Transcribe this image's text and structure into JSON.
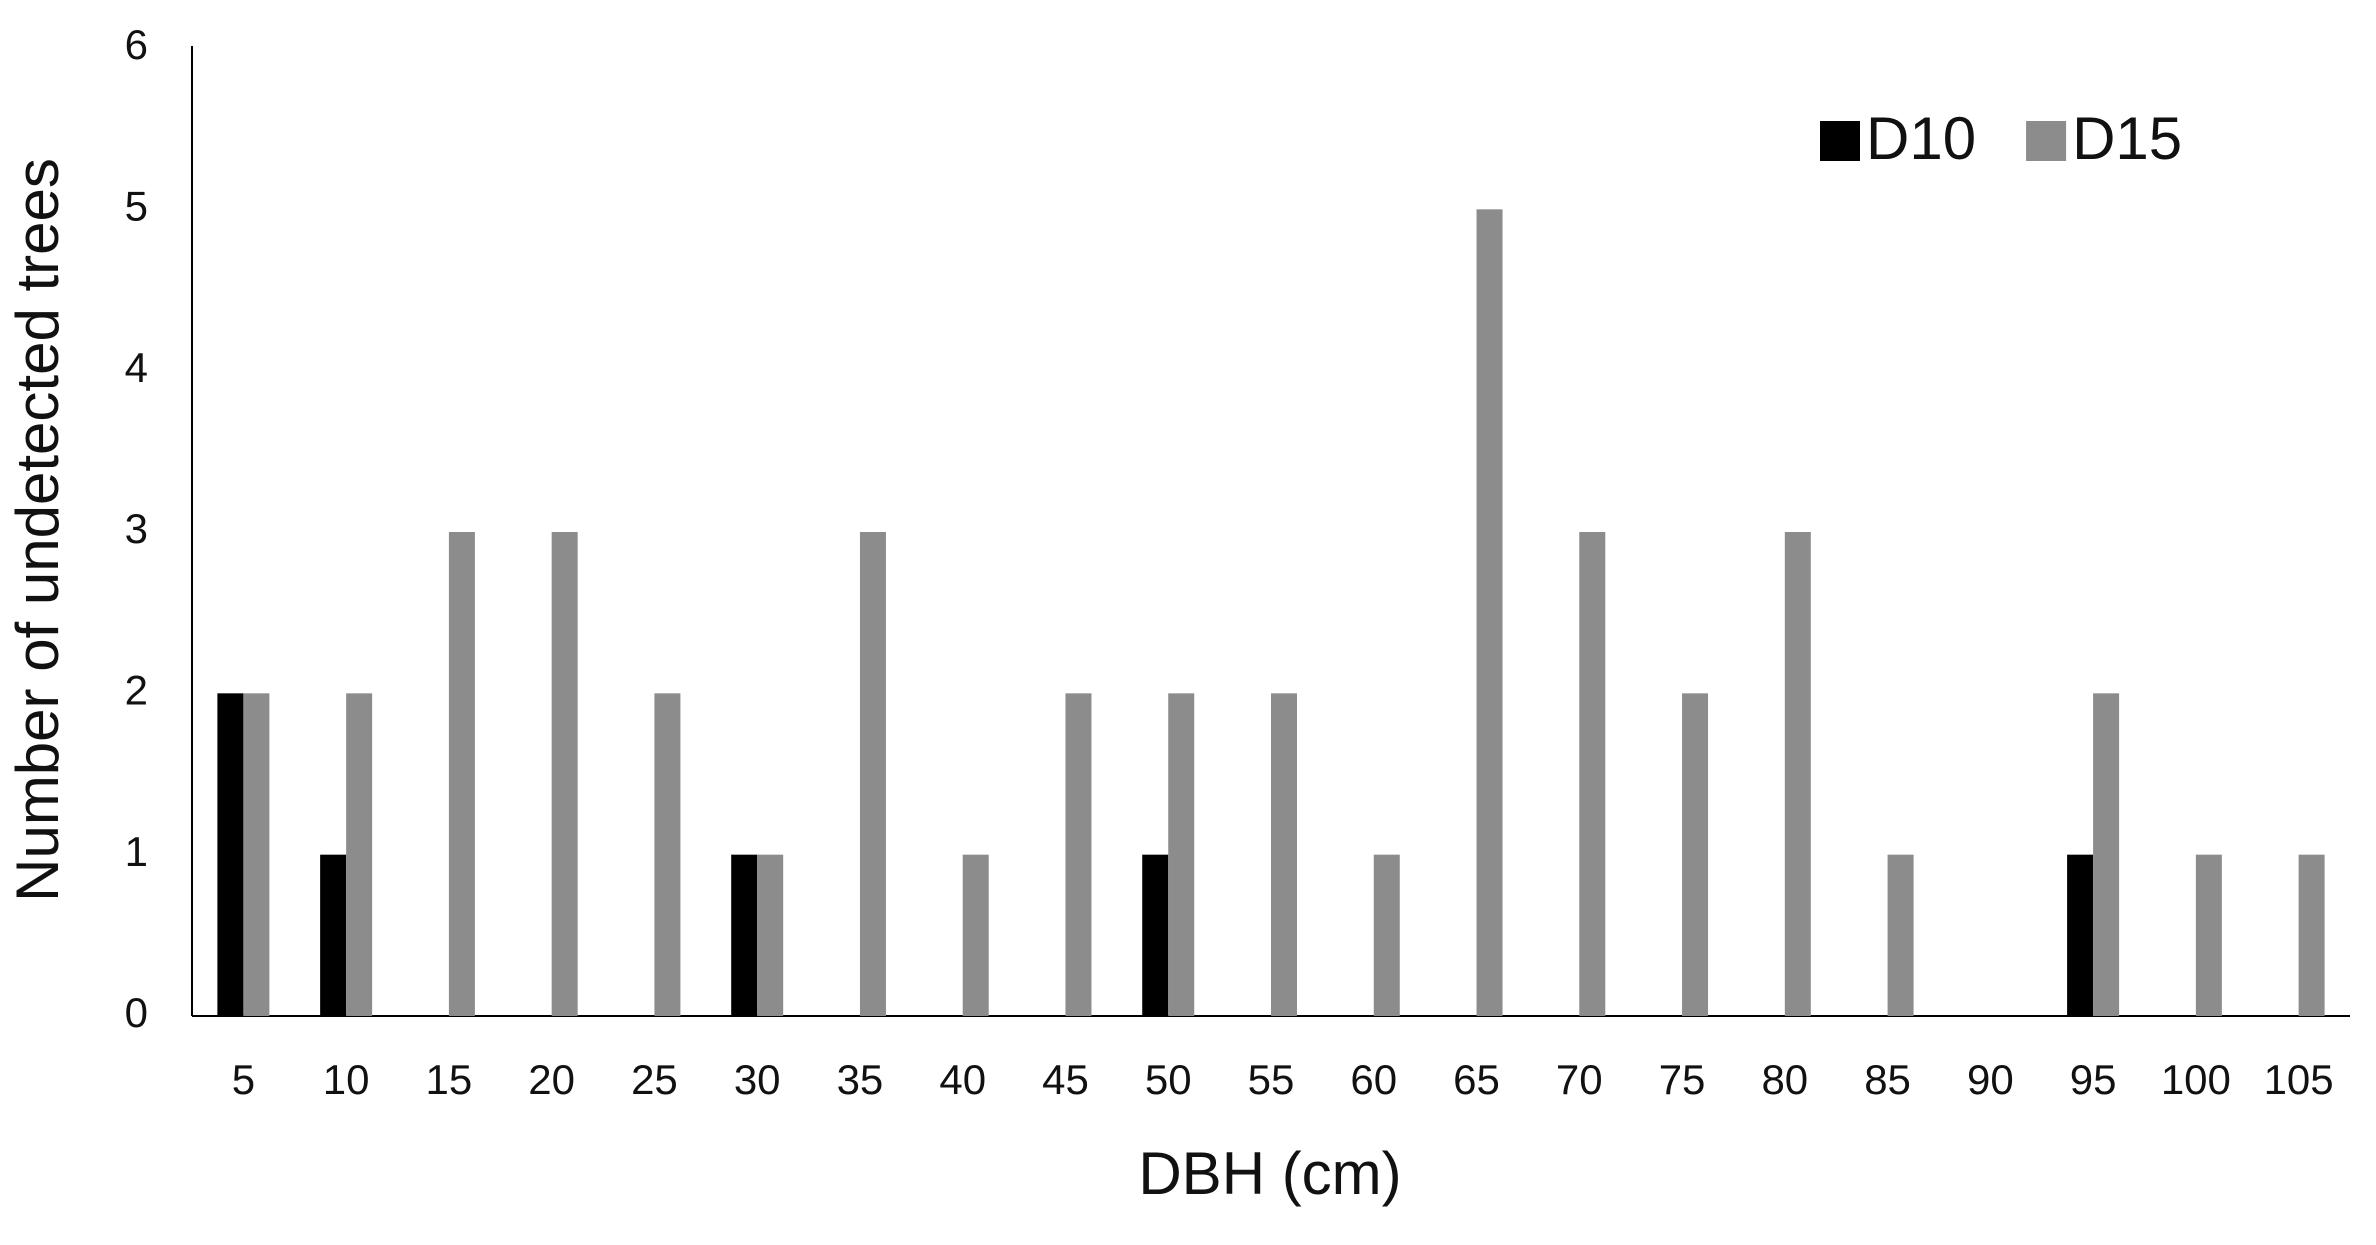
{
  "chart_data": {
    "type": "bar",
    "x_label": "DBH (cm)",
    "y_label": "Number of undetected trees",
    "categories": [
      "5",
      "10",
      "15",
      "20",
      "25",
      "30",
      "35",
      "40",
      "45",
      "50",
      "55",
      "60",
      "65",
      "70",
      "75",
      "80",
      "85",
      "90",
      "95",
      "100",
      "105"
    ],
    "series": [
      {
        "name": "D10",
        "color": "#000000",
        "values": [
          2,
          1,
          0,
          0,
          0,
          1,
          0,
          0,
          0,
          1,
          0,
          0,
          0,
          0,
          0,
          0,
          0,
          0,
          1,
          0,
          0
        ]
      },
      {
        "name": "D15",
        "color": "#8c8c8c",
        "values": [
          2,
          2,
          3,
          3,
          2,
          1,
          3,
          1,
          2,
          2,
          2,
          1,
          5,
          3,
          2,
          3,
          1,
          0,
          2,
          1,
          1
        ]
      }
    ],
    "ylim": [
      0,
      6
    ],
    "yticks": [
      0,
      1,
      2,
      3,
      4,
      5,
      6
    ],
    "grid": false,
    "legend": "top-right"
  }
}
